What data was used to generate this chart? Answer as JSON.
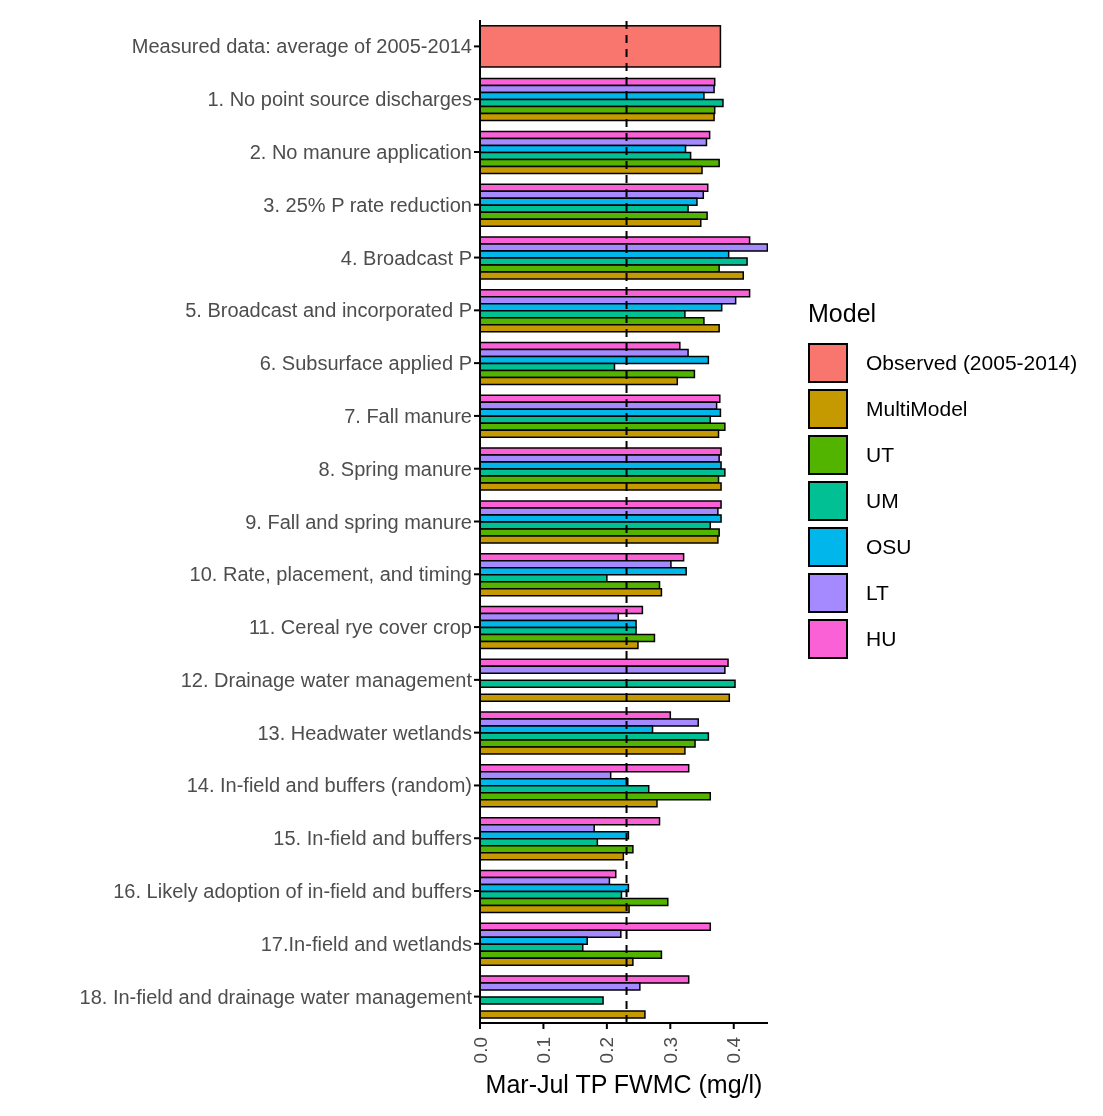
{
  "chart_data": {
    "type": "bar",
    "orientation": "horizontal",
    "xlabel": "Mar-Jul TP FWMC (mg/l)",
    "legend_title": "Model",
    "legend": "right",
    "categories": [
      "Measured data: average of 2005-2014",
      "1. No point source discharges",
      "2. No manure application",
      "3. 25% P rate reduction",
      "4. Broadcast P",
      "5. Broadcast and incorporated P",
      "6. Subsurface applied P",
      "7. Fall manure",
      "8. Spring manure",
      "9. Fall and spring manure",
      "10. Rate, placement, and timing",
      "11. Cereal rye cover crop",
      "12. Drainage water management",
      "13. Headwater wetlands",
      "14. In-field and buffers (random)",
      "15. In-field and buffers",
      "16. Likely adoption of in-field and buffers",
      "17.In-field and wetlands",
      "18. In-field and drainage water management"
    ],
    "series": [
      {
        "name": "Observed (2005-2014)",
        "color": "#f8766d",
        "values": [
          0.379,
          null,
          null,
          null,
          null,
          null,
          null,
          null,
          null,
          null,
          null,
          null,
          null,
          null,
          null,
          null,
          null,
          null,
          null
        ]
      },
      {
        "name": "MultiModel",
        "color": "#c49a00",
        "values": [
          null,
          0.369,
          0.35,
          0.348,
          0.415,
          0.377,
          0.311,
          0.376,
          0.38,
          0.375,
          0.286,
          0.249,
          0.393,
          0.323,
          0.279,
          0.226,
          0.235,
          0.241,
          0.26
        ]
      },
      {
        "name": "UT",
        "color": "#53b400",
        "values": [
          null,
          0.37,
          0.377,
          0.358,
          0.377,
          0.353,
          0.338,
          0.386,
          0.376,
          0.377,
          0.283,
          0.275,
          null,
          0.339,
          0.363,
          0.241,
          0.296,
          0.286,
          null
        ]
      },
      {
        "name": "UM",
        "color": "#00c094",
        "values": [
          null,
          0.383,
          0.332,
          0.328,
          0.421,
          0.323,
          0.212,
          0.363,
          0.386,
          0.363,
          0.2,
          0.246,
          0.402,
          0.36,
          0.266,
          0.185,
          0.223,
          0.162,
          0.194
        ]
      },
      {
        "name": "OSU",
        "color": "#00b6eb",
        "values": [
          null,
          0.353,
          0.324,
          0.342,
          0.392,
          0.381,
          0.36,
          0.379,
          0.38,
          0.38,
          0.325,
          0.246,
          null,
          0.272,
          0.233,
          0.234,
          0.234,
          0.169,
          null
        ]
      },
      {
        "name": "LT",
        "color": "#a58aff",
        "values": [
          null,
          0.369,
          0.357,
          0.352,
          0.453,
          0.403,
          0.328,
          0.373,
          0.377,
          0.375,
          0.301,
          0.218,
          0.386,
          0.344,
          0.206,
          0.18,
          0.204,
          0.222,
          0.252
        ]
      },
      {
        "name": "HU",
        "color": "#fb61d7",
        "values": [
          null,
          0.37,
          0.362,
          0.359,
          0.425,
          0.425,
          0.315,
          0.378,
          0.38,
          0.38,
          0.321,
          0.256,
          0.391,
          0.3,
          0.329,
          0.283,
          0.214,
          0.363,
          0.329
        ]
      }
    ],
    "xlim": [
      0,
      0.454
    ],
    "xticks": [
      {
        "value": 0,
        "label": "0.0"
      },
      0.1,
      0.2,
      0.3,
      0.4
    ],
    "ref_lines": [
      {
        "axis": "x",
        "value": 0.231,
        "line_style": "dashed",
        "color": "#000000"
      }
    ]
  }
}
